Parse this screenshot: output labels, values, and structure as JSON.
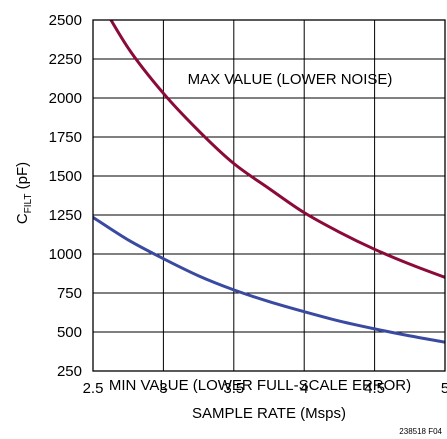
{
  "chart_data": {
    "type": "line",
    "xlabel": "SAMPLE RATE (Msps)",
    "ylabel_main": "C",
    "ylabel_sub": "FILT",
    "ylabel_unit": " (pF)",
    "xlim": [
      2.5,
      5
    ],
    "ylim": [
      250,
      2500
    ],
    "xticks": [
      2.5,
      3,
      3.5,
      4,
      4.5,
      5
    ],
    "xtick_labels": [
      "2.5",
      "3",
      "3.5",
      "4",
      "4.5",
      "5"
    ],
    "yticks": [
      250,
      500,
      750,
      1000,
      1250,
      1500,
      1750,
      2000,
      2250,
      2500
    ],
    "ytick_labels": [
      "250",
      "500",
      "750",
      "1000",
      "1250",
      "1500",
      "1750",
      "2000",
      "2250",
      "2500"
    ],
    "grid": true,
    "annotations": [
      "MAX VALUE (LOWER NOISE)",
      "MIN VALUE (LOWER FULL-SCALE ERROR)"
    ],
    "figure_id": "238518 F04",
    "series": [
      {
        "color": "#8b0a3a",
        "x": [
          2.5,
          2.75,
          3.0,
          3.25,
          3.5,
          3.75,
          4.0,
          4.25,
          4.5,
          4.75,
          5.0
        ],
        "y": [
          2700,
          2320,
          2030,
          1790,
          1580,
          1420,
          1265,
          1140,
          1030,
          935,
          850
        ]
      },
      {
        "color": "#3a4aa0",
        "x": [
          2.5,
          2.75,
          3.0,
          3.25,
          3.5,
          3.75,
          4.0,
          4.25,
          4.5,
          4.75,
          5.0
        ],
        "y": [
          1235,
          1090,
          970,
          860,
          770,
          695,
          630,
          570,
          520,
          475,
          435
        ]
      }
    ]
  }
}
